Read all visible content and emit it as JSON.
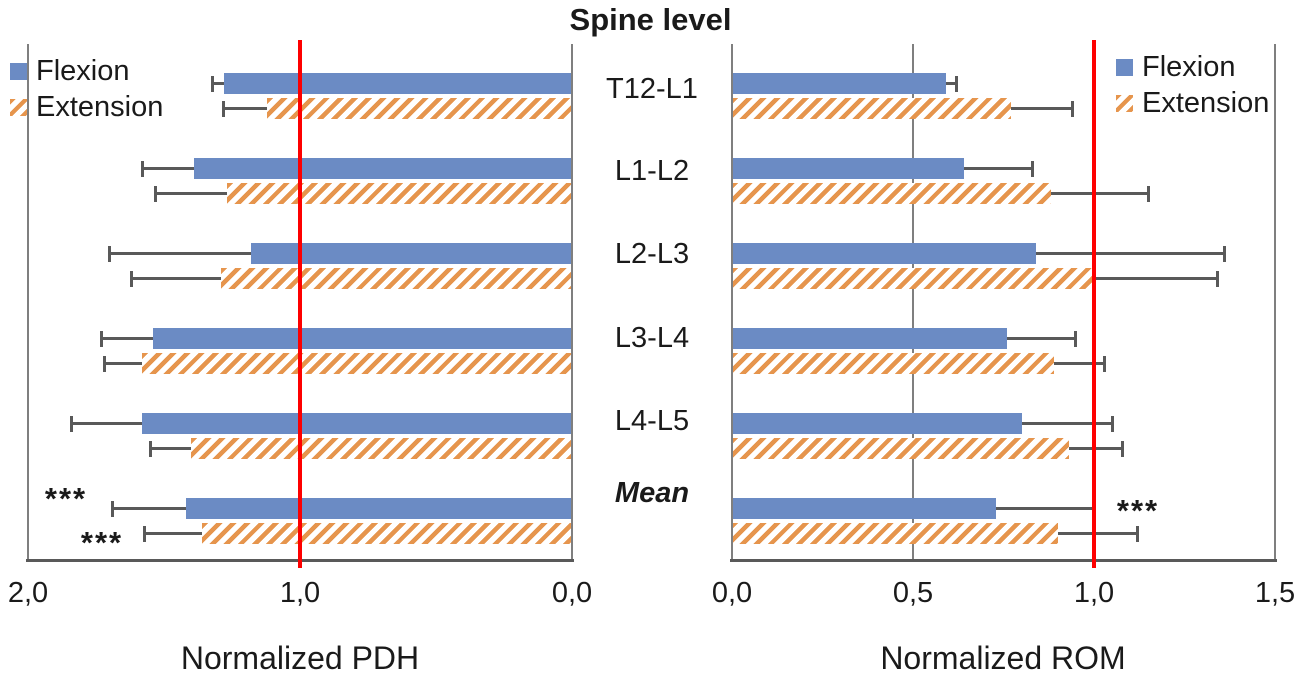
{
  "title": "Spine level",
  "legend": {
    "flexion": "Flexion",
    "extension": "Extension"
  },
  "spine_levels": [
    "T12-L1",
    "L1-L2",
    "L2-L3",
    "L3-L4",
    "L4-L5",
    "Mean"
  ],
  "significance": {
    "pdh_mean_flexion": "***",
    "pdh_mean_extension": "***",
    "rom_mean": "***"
  },
  "colors": {
    "flexion_blue": "#6b8bc4",
    "extension_orange": "#e6954d",
    "reference_line_red": "#fe0000",
    "error_bar_gray": "#595959",
    "border_gray": "#7f7f7f",
    "text": "#1a1a1a"
  },
  "chart_data": [
    {
      "id": "pdh",
      "type": "bar",
      "orientation": "horizontal",
      "xlabel": "Normalized PDH",
      "axis_reversed": true,
      "xlim": [
        2.0,
        0.0
      ],
      "reference_line": 1.0,
      "error_direction": "away_from_zero",
      "gridlines": [],
      "categories": [
        "T12-L1",
        "L1-L2",
        "L2-L3",
        "L3-L4",
        "L4-L5",
        "Mean"
      ],
      "series": [
        {
          "name": "Flexion",
          "values": [
            1.28,
            1.39,
            1.18,
            1.54,
            1.58,
            1.42
          ],
          "errors": [
            0.04,
            0.19,
            0.52,
            0.19,
            0.26,
            0.27
          ]
        },
        {
          "name": "Extension",
          "values": [
            1.12,
            1.27,
            1.29,
            1.58,
            1.4,
            1.36
          ],
          "errors": [
            0.16,
            0.26,
            0.33,
            0.14,
            0.15,
            0.21
          ]
        }
      ],
      "xticks": [
        {
          "value": 2.0,
          "label": "2,0"
        },
        {
          "value": 1.0,
          "label": "1,0"
        },
        {
          "value": 0.0,
          "label": "0,0"
        }
      ]
    },
    {
      "id": "rom",
      "type": "bar",
      "orientation": "horizontal",
      "xlabel": "Normalized ROM",
      "axis_reversed": false,
      "xlim": [
        0.0,
        1.5
      ],
      "reference_line": 1.0,
      "error_direction": "away_from_zero",
      "gridlines": [
        0.5
      ],
      "categories": [
        "T12-L1",
        "L1-L2",
        "L2-L3",
        "L3-L4",
        "L4-L5",
        "Mean"
      ],
      "series": [
        {
          "name": "Flexion",
          "values": [
            0.59,
            0.64,
            0.84,
            0.76,
            0.8,
            0.73
          ],
          "errors": [
            0.03,
            0.19,
            0.52,
            0.19,
            0.25,
            0.27
          ]
        },
        {
          "name": "Extension",
          "values": [
            0.77,
            0.88,
            1.0,
            0.89,
            0.93,
            0.9
          ],
          "errors": [
            0.17,
            0.27,
            0.34,
            0.14,
            0.15,
            0.22
          ]
        }
      ],
      "xticks": [
        {
          "value": 0.0,
          "label": "0,0"
        },
        {
          "value": 0.5,
          "label": "0,5"
        },
        {
          "value": 1.0,
          "label": "1,0"
        },
        {
          "value": 1.5,
          "label": "1,5"
        }
      ]
    }
  ]
}
